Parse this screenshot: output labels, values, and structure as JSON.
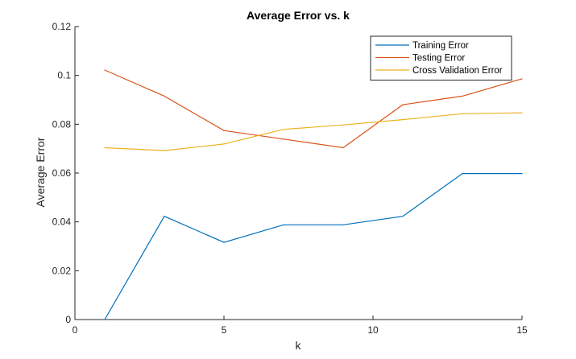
{
  "chart_data": {
    "type": "line",
    "title": "Average Error vs. k",
    "xlabel": "k",
    "ylabel": "Average Error",
    "xlim": [
      0,
      15
    ],
    "ylim": [
      0,
      0.12
    ],
    "x_ticks": [
      0,
      5,
      10,
      15
    ],
    "x_tick_labels": [
      "0",
      "5",
      "10",
      "15"
    ],
    "y_ticks": [
      0,
      0.02,
      0.04,
      0.06,
      0.08,
      0.1,
      0.12
    ],
    "y_tick_labels": [
      "0",
      "0.02",
      "0.04",
      "0.06",
      "0.08",
      "0.1",
      "0.12"
    ],
    "grid": false,
    "legend_position": "top-right",
    "x": [
      1,
      3,
      5,
      7,
      9,
      11,
      13,
      15
    ],
    "series": [
      {
        "name": "Training Error",
        "color": "#0072BD",
        "values": [
          0.0,
          0.0423,
          0.0316,
          0.0388,
          0.0388,
          0.0423,
          0.0598,
          0.0598
        ]
      },
      {
        "name": "Testing Error",
        "color": "#D95319",
        "values": [
          0.1022,
          0.0915,
          0.0774,
          0.0739,
          0.0704,
          0.088,
          0.0915,
          0.0986
        ]
      },
      {
        "name": "Cross Validation Error",
        "color": "#EDB120",
        "values": [
          0.0704,
          0.0692,
          0.0719,
          0.0779,
          0.0797,
          0.0819,
          0.0843,
          0.0847
        ]
      }
    ]
  }
}
